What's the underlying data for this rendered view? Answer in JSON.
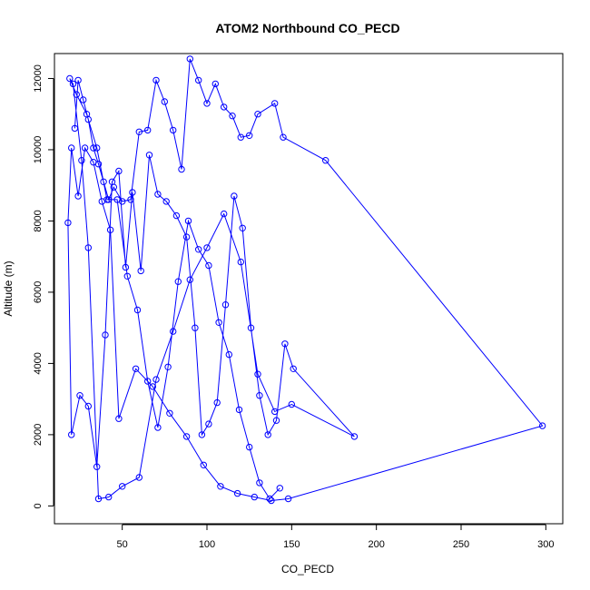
{
  "chart_data": {
    "type": "line",
    "title": "ATOM2 Northbound CO_PECD",
    "xlabel": "CO_PECD",
    "ylabel": "Altitude (m)",
    "xlim": [
      10,
      310
    ],
    "ylim": [
      -500,
      12700
    ],
    "x_ticks": [
      50,
      100,
      150,
      200,
      250,
      300
    ],
    "y_ticks": [
      0,
      2000,
      4000,
      6000,
      8000,
      10000,
      12000
    ],
    "grid": false,
    "legend": "none",
    "markers": "open-circle",
    "color": "#0000ff",
    "series": [
      {
        "x": [
          22,
          24,
          27,
          30,
          33,
          36,
          39,
          42,
          45,
          50,
          55,
          60,
          65,
          70,
          75,
          80,
          85,
          90,
          95,
          100,
          105,
          110,
          115,
          120,
          125,
          130,
          140,
          145,
          170,
          298,
          148,
          138,
          128,
          118,
          108,
          98,
          88,
          78,
          68,
          58,
          48,
          43,
          38,
          33,
          28,
          24,
          20,
          18,
          20,
          25,
          30,
          35,
          40,
          44,
          48,
          52,
          56,
          61,
          66,
          71,
          76,
          82,
          88,
          93,
          97,
          101,
          106,
          111,
          116,
          121,
          126,
          131,
          136,
          141,
          146,
          151,
          187,
          150,
          140,
          130,
          120,
          110,
          100,
          90,
          80,
          70,
          60,
          50,
          42,
          36,
          30,
          26,
          21,
          19,
          23,
          29,
          35,
          41,
          47,
          53,
          59,
          65,
          71,
          77,
          83,
          89,
          95,
          101,
          107,
          113,
          119,
          125,
          131,
          137,
          143
        ],
        "y": [
          10600,
          11950,
          11400,
          10850,
          10050,
          9600,
          9100,
          8600,
          8950,
          8550,
          8600,
          10500,
          10550,
          11950,
          11350,
          10550,
          9450,
          12550,
          11950,
          11300,
          11850,
          11200,
          10950,
          10350,
          10400,
          11000,
          11300,
          10350,
          9700,
          2250,
          200,
          150,
          250,
          350,
          550,
          1150,
          1950,
          2600,
          3350,
          3850,
          2450,
          7750,
          8550,
          9650,
          10050,
          8700,
          10050,
          7950,
          2000,
          3100,
          2800,
          1100,
          4800,
          9100,
          9400,
          6700,
          8800,
          6600,
          9850,
          8750,
          8550,
          8150,
          7550,
          5000,
          2000,
          2300,
          2900,
          5650,
          8700,
          7800,
          5000,
          3100,
          2000,
          2400,
          4550,
          3850,
          1950,
          2850,
          2650,
          3700,
          6850,
          8200,
          7250,
          6350,
          4900,
          3550,
          800,
          550,
          250,
          200,
          7250,
          9700,
          11850,
          12000,
          11550,
          11000,
          10050,
          8600,
          8600,
          6450,
          5500,
          3500,
          2200,
          3900,
          6300,
          8000,
          7200,
          6750,
          5150,
          4250,
          2700,
          1650,
          650,
          200,
          500
        ]
      }
    ]
  }
}
